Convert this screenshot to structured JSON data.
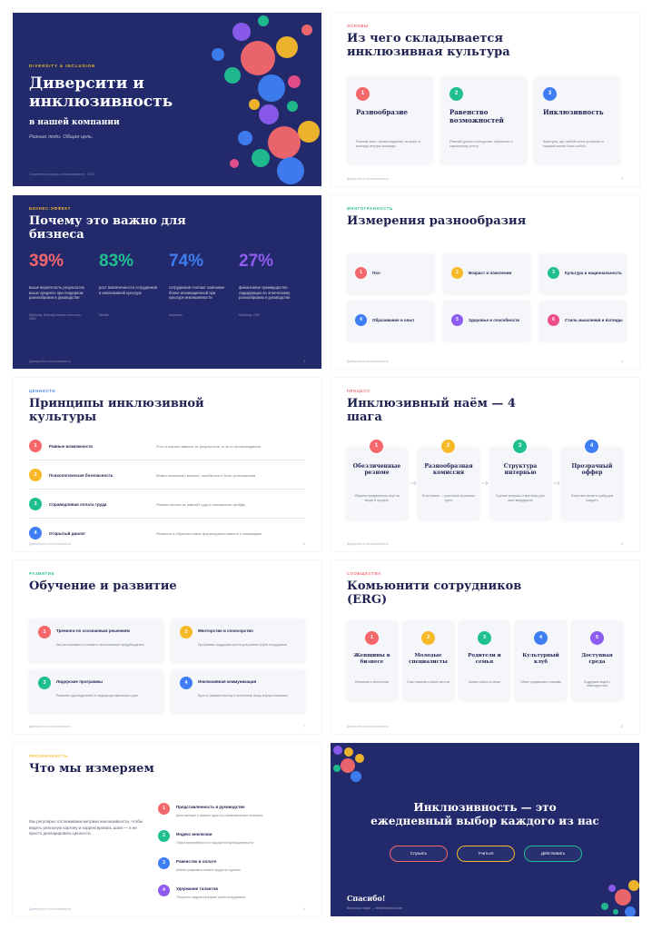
{
  "slides": [
    {
      "eyebrow": "DIVERSITY & INCLUSION",
      "title": "Диверсити и инклюзивность",
      "subtitle": "в нашей компании",
      "tagline": "Разные люди. Общая цель.",
      "footer": "Стратегия культуры и инклюзивности · 2025"
    },
    {
      "eyebrow": "ОСНОВЫ",
      "title": "Из чего складывается инклюзивная культура",
      "cards": [
        {
          "num": "1",
          "title": "Разнообразие",
          "text": "Разный опыт, происхождение, возраст и взгляды внутри команды"
        },
        {
          "num": "2",
          "title": "Равенство возможностей",
          "text": "Равный доступ к ресурсам, обучению и карьерному росту"
        },
        {
          "num": "3",
          "title": "Инклюзивность",
          "text": "Культура, где любой голос услышан и каждый может быть собой"
        }
      ],
      "footer": "Диверсити и инклюзивность",
      "page": "2"
    },
    {
      "eyebrow": "БИЗНЕС-ЭФФЕКТ",
      "title": "Почему это важно для бизнеса",
      "stats": [
        {
          "value": "39%",
          "text": "выше вероятность результатов выше среднего при гендерном разнообразии в руководстве",
          "source": "McKinsey, Diversity matters even more, 2023"
        },
        {
          "value": "83%",
          "text": "рост вовлечённости сотрудников в инклюзивной культуре",
          "source": "Deloitte"
        },
        {
          "value": "74%",
          "text": "сотрудников считают компании более инновационной при культуре инклюзивности",
          "source": "Accenture"
        },
        {
          "value": "27%",
          "text": "финансовое преимущество лидирующих по этническому разнообразию в руководстве",
          "source": "McKinsey, 2023"
        }
      ],
      "footer": "Диверсити и инклюзивность",
      "page": "3"
    },
    {
      "eyebrow": "МНОГОГРАННОСТЬ",
      "title": "Измерения разнообразия",
      "items": [
        {
          "num": "1",
          "label": "Пол"
        },
        {
          "num": "2",
          "label": "Возраст и поколения"
        },
        {
          "num": "3",
          "label": "Культура и национальность"
        },
        {
          "num": "4",
          "label": "Образование и опыт"
        },
        {
          "num": "5",
          "label": "Здоровье и способности"
        },
        {
          "num": "6",
          "label": "Стиль мышления и взгляды"
        }
      ],
      "footer": "Диверсити и инклюзивность",
      "page": "4"
    },
    {
      "eyebrow": "ЦЕННОСТИ",
      "title": "Принципы инклюзивной культуры",
      "rows": [
        {
          "num": "1",
          "title": "Равные возможности",
          "text": "Рост и оценка зависят от результатов, а не от происхождения"
        },
        {
          "num": "2",
          "title": "Психологическая безопасность",
          "text": "Можно высказать мнение, ошибаться и быть услышанным"
        },
        {
          "num": "3",
          "title": "Справедливая оплата труда",
          "text": "Равная оплата за равный труд и прозрачные грейды"
        },
        {
          "num": "4",
          "title": "Открытый диалог",
          "text": "Решения и обратная связь формируются вместе с командами"
        }
      ],
      "footer": "Диверсити и инклюзивность",
      "page": "5"
    },
    {
      "eyebrow": "ПРОЦЕСС",
      "title": "Инклюзивный наём — 4 шага",
      "steps": [
        {
          "num": "1",
          "title": "Обезличенные резюме",
          "text": "Убираем предвзятость ещё на входе в процесс"
        },
        {
          "num": "2",
          "title": "Разнообразная комиссия",
          "text": "В интервью — участники из разных групп"
        },
        {
          "num": "3",
          "title": "Структура интервью",
          "text": "Единые вопросы и критерии для всех кандидатов"
        },
        {
          "num": "4",
          "title": "Прозрачный оффер",
          "text": "Понятные вилки и грейд для каждого"
        }
      ],
      "footer": "Диверсити и инклюзивность",
      "page": "6"
    },
    {
      "eyebrow": "РАЗВИТИЕ",
      "title": "Обучение и развитие",
      "cards": [
        {
          "num": "1",
          "title": "Тренинги по осознанным решениям",
          "text": "Как распознавать и снижать неосознанные предубеждения"
        },
        {
          "num": "2",
          "title": "Менторство и спонсорство",
          "text": "Программы поддержки роста для разных групп сотрудников"
        },
        {
          "num": "3",
          "title": "Лидерские программы",
          "text": "Развитие руководителей из недопредставленных групп"
        },
        {
          "num": "4",
          "title": "Инклюзивная коммуникация",
          "text": "Курс по уважительному и понятному языку внутри компании"
        }
      ],
      "footer": "Диверсити и инклюзивность",
      "page": "7"
    },
    {
      "eyebrow": "СООБЩЕСТВА",
      "title": "Комьюнити сотрудников (ERG)",
      "cards": [
        {
          "num": "1",
          "title": "Женщины в бизнесе",
          "text": "Нетворкинг и менторство"
        },
        {
          "num": "2",
          "title": "Молодые специалисты",
          "text": "Старт карьеры и обмен опытом"
        },
        {
          "num": "3",
          "title": "Родители и семья",
          "text": "Баланс работы и семьи"
        },
        {
          "num": "4",
          "title": "Культурный клуб",
          "text": "Обмен традициями и языками"
        },
        {
          "num": "5",
          "title": "Доступная среда",
          "text": "Поддержка людей с инвалидностью"
        }
      ],
      "footer": "Диверсити и инклюзивность",
      "page": "8"
    },
    {
      "eyebrow": "ПРОЗРАЧНОСТЬ",
      "title": "Что мы измеряем",
      "intro": "Мы регулярно отслеживаем метрики инклюзивности, чтобы видеть реальную картину и корректировать шаги — а не просто декларировать ценности.",
      "items": [
        {
          "num": "1",
          "title": "Представленность в руководстве",
          "text": "Доля женщин и разных групп на управленческих позициях"
        },
        {
          "num": "2",
          "title": "Индекс инклюзии",
          "text": "Опрос вовлечённости и ощущения принадлежности"
        },
        {
          "num": "3",
          "title": "Равенство в оплате",
          "text": "Анализ разрыва в оплате труда по группам"
        },
        {
          "num": "4",
          "title": "Удержание талантов",
          "text": "Текучесть кадров в разрезе групп сотрудников"
        }
      ],
      "footer": "Диверсити и инклюзивность",
      "page": "9"
    },
    {
      "title": "Инклюзивность — это\nежедневный выбор каждого из нас",
      "buttons": [
        "Слушать",
        "Учиться",
        "Действовать"
      ],
      "thanks": "Спасибо!",
      "contact": "Вопросы и идеи → dei@company.com"
    }
  ]
}
